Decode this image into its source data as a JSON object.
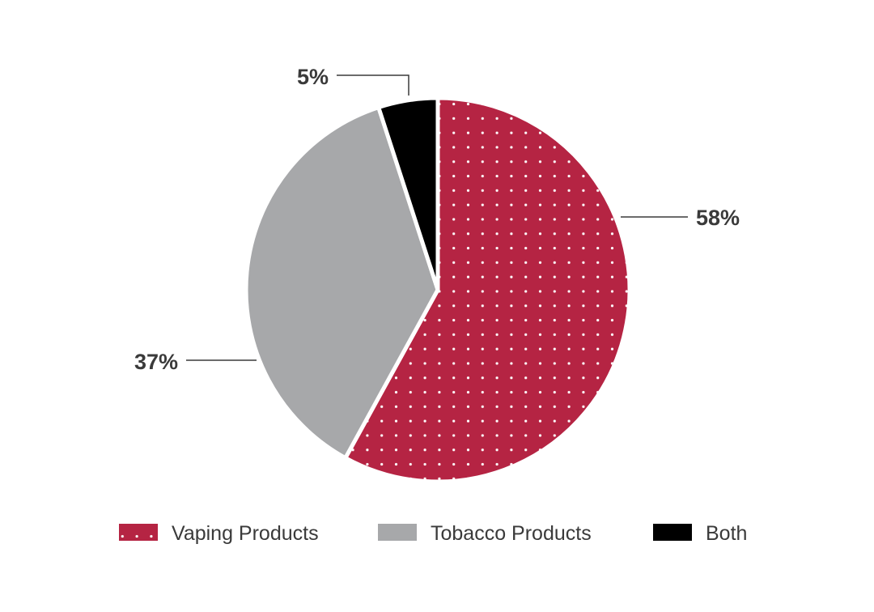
{
  "chart_data": {
    "type": "pie",
    "title": "",
    "slices": [
      {
        "label": "Vaping Products",
        "value": 58,
        "display": "58%",
        "color": "#b52443",
        "pattern": "dots"
      },
      {
        "label": "Tobacco Products",
        "value": 37,
        "display": "37%",
        "color": "#a7a8aa",
        "pattern": "none"
      },
      {
        "label": "Both",
        "value": 5,
        "display": "5%",
        "color": "#000000",
        "pattern": "none"
      }
    ],
    "start": "12 o'clock",
    "direction": "clockwise",
    "legend_position": "bottom"
  }
}
